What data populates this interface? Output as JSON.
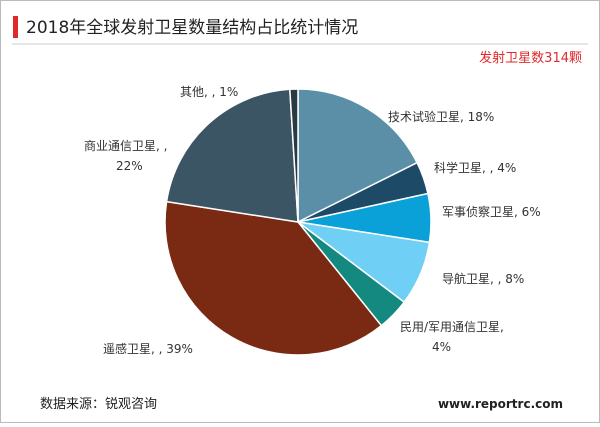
{
  "chart_data": {
    "type": "pie",
    "title": "2018年全球发射卫星数量结构占比统计情况",
    "subtitle": "发射卫星数314颗",
    "values": [
      18,
      4,
      6,
      8,
      4,
      39,
      22,
      1
    ],
    "value_labels": [
      "技术试验卫星, 18%",
      "科学卫星, , 4%",
      "军事侦察卫星, 6%",
      "导航卫星, , 8%",
      "民用/军用通信卫星,\n4%",
      "遥感卫星, , 39%",
      "商业通信卫星, ,\n22%",
      "其他, , 1%"
    ],
    "colors": [
      "#5b8fa8",
      "#1d4a66",
      "#0aa0d8",
      "#6fcff4",
      "#13897f",
      "#7a2913",
      "#3b5564",
      "#2a3a44"
    ],
    "source": "数据来源：锐观咨询",
    "website": "www.reportrc.com"
  }
}
